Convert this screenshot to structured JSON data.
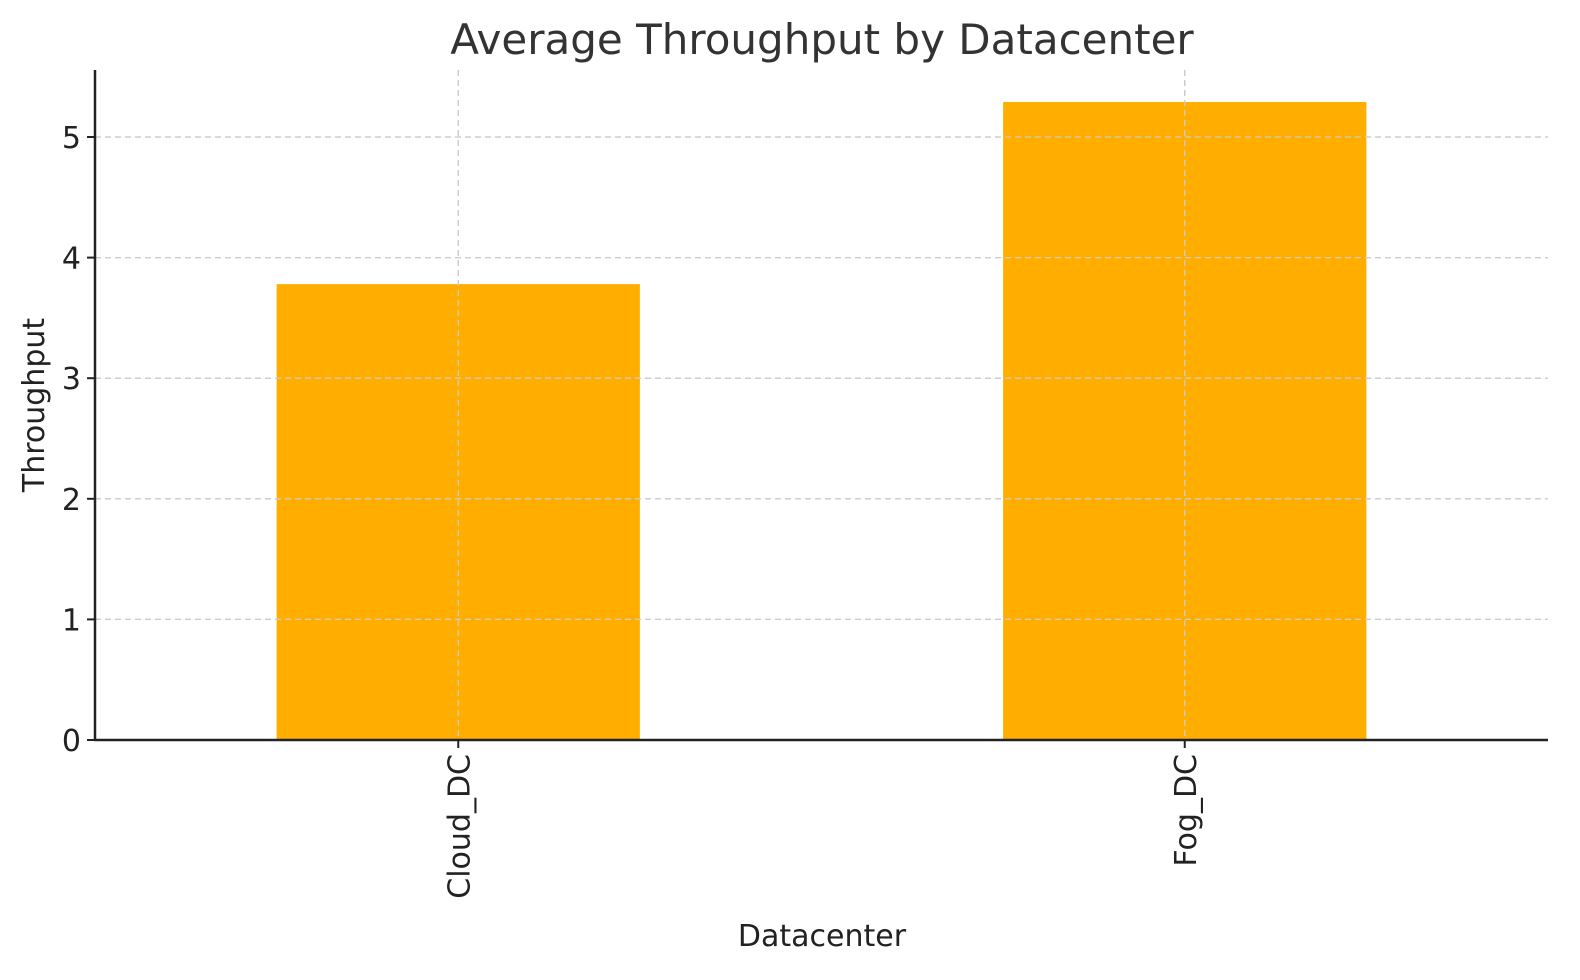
{
  "chart_data": {
    "type": "bar",
    "title": "Average Throughput by Datacenter",
    "xlabel": "Datacenter",
    "ylabel": "Throughput",
    "categories": [
      "Cloud_DC",
      "Fog_DC"
    ],
    "values": [
      3.78,
      5.29
    ],
    "ylim": [
      0,
      5.55
    ],
    "yticks": [
      "0",
      "1",
      "2",
      "3",
      "4",
      "5"
    ],
    "grid": true,
    "legend": "none",
    "bar_color": "#FFAE00"
  }
}
